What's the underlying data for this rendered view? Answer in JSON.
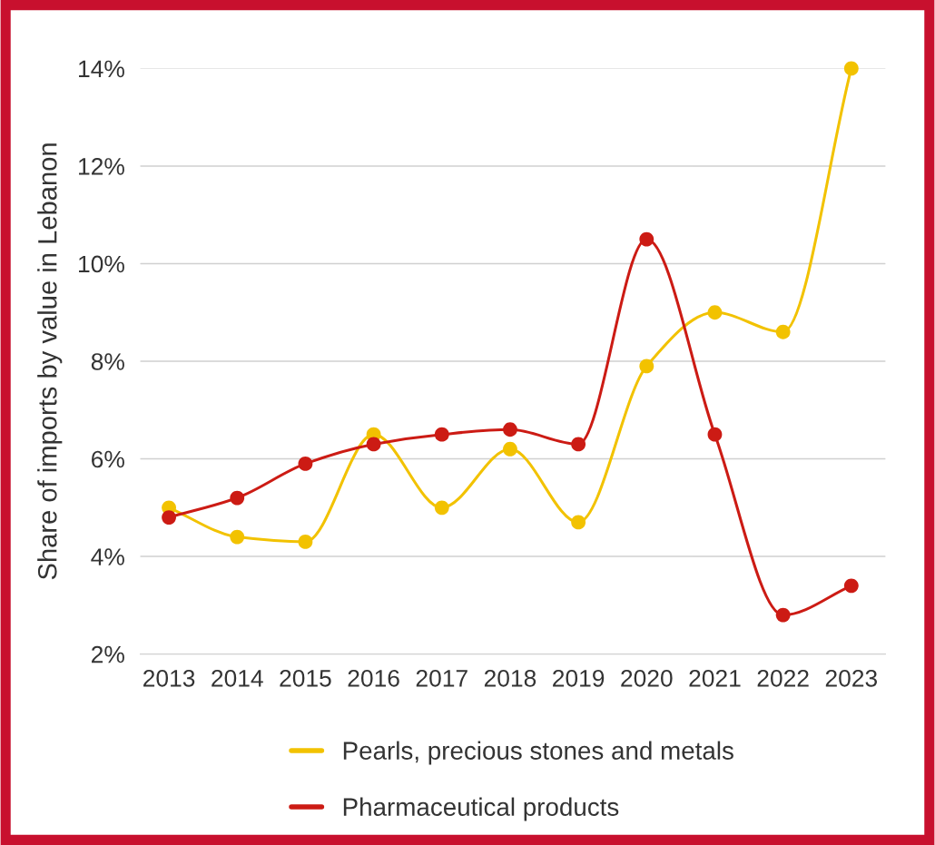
{
  "chart_data": {
    "type": "line",
    "ylabel": "Share of imports by value in Lebanon",
    "categories": [
      "2013",
      "2014",
      "2015",
      "2016",
      "2017",
      "2018",
      "2019",
      "2020",
      "2021",
      "2022",
      "2023"
    ],
    "series": [
      {
        "name": "Pearls, precious stones and metals",
        "color": "#f2c200",
        "values": [
          5.0,
          4.4,
          4.3,
          6.5,
          5.0,
          6.2,
          4.7,
          7.9,
          9.0,
          8.6,
          14.0
        ]
      },
      {
        "name": "Pharmaceutical products",
        "color": "#cc1b14",
        "values": [
          4.8,
          5.2,
          5.9,
          6.3,
          6.5,
          6.6,
          6.3,
          10.5,
          6.5,
          2.8,
          3.4
        ]
      }
    ],
    "ylim": [
      2,
      14
    ],
    "yticks": [
      {
        "value": 2,
        "label": "2%"
      },
      {
        "value": 4,
        "label": "4%"
      },
      {
        "value": 6,
        "label": "6%"
      },
      {
        "value": 8,
        "label": "8%"
      },
      {
        "value": 10,
        "label": "10%"
      },
      {
        "value": 12,
        "label": "12%"
      },
      {
        "value": 14,
        "label": "14%"
      }
    ],
    "grid": "y",
    "legend": "bottom",
    "marker": "circle",
    "line_style": "solid"
  }
}
